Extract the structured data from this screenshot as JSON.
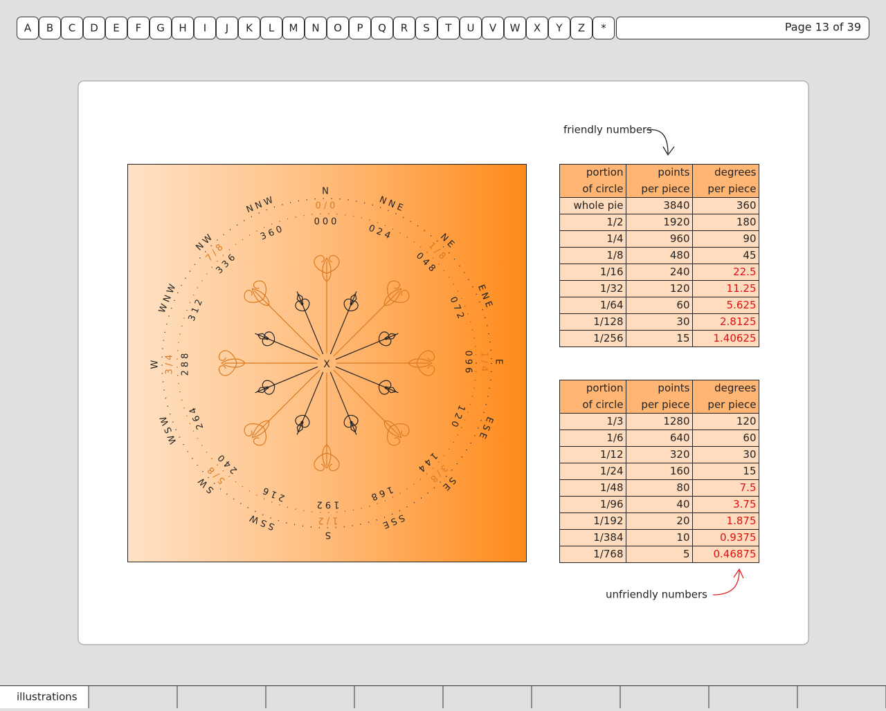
{
  "nav": {
    "letters": [
      "A",
      "B",
      "C",
      "D",
      "E",
      "F",
      "G",
      "H",
      "I",
      "J",
      "K",
      "L",
      "M",
      "N",
      "O",
      "P",
      "Q",
      "R",
      "S",
      "T",
      "U",
      "V",
      "W",
      "X",
      "Y",
      "Z",
      "*"
    ],
    "page_label": "Page 13 of 39"
  },
  "annotations": {
    "friendly": "friendly numbers",
    "unfriendly": "unfriendly numbers"
  },
  "compass": {
    "center": "X",
    "directions": [
      "N",
      "NNE",
      "NE",
      "ENE",
      "E",
      "ESE",
      "SE",
      "SSE",
      "S",
      "SSW",
      "SW",
      "WSW",
      "W",
      "WNW",
      "NW",
      "NNW"
    ],
    "fractions": [
      "0/0",
      "1/8",
      "1/4",
      "3/8",
      "1/2",
      "5/8",
      "3/4",
      "7/8"
    ],
    "numbers": [
      "000",
      "024",
      "048",
      "072",
      "096",
      "120",
      "144",
      "168",
      "192",
      "216",
      "240",
      "264",
      "288",
      "312",
      "336",
      "360"
    ]
  },
  "tables": [
    {
      "header": [
        [
          "portion",
          "of circle"
        ],
        [
          "points",
          "per piece"
        ],
        [
          "degrees",
          "per piece"
        ]
      ],
      "rows": [
        [
          "whole pie",
          "3840",
          "360"
        ],
        [
          "1/2",
          "1920",
          "180"
        ],
        [
          "1/4",
          "960",
          "90"
        ],
        [
          "1/8",
          "480",
          "45"
        ],
        [
          "1/16",
          "240",
          "22.5"
        ],
        [
          "1/32",
          "120",
          "11.25"
        ],
        [
          "1/64",
          "60",
          "5.625"
        ],
        [
          "1/128",
          "30",
          "2.8125"
        ],
        [
          "1/256",
          "15",
          "1.40625"
        ]
      ]
    },
    {
      "header": [
        [
          "portion",
          "of circle"
        ],
        [
          "points",
          "per piece"
        ],
        [
          "degrees",
          "per piece"
        ]
      ],
      "rows": [
        [
          "1/3",
          "1280",
          "120"
        ],
        [
          "1/6",
          "640",
          "60"
        ],
        [
          "1/12",
          "320",
          "30"
        ],
        [
          "1/24",
          "160",
          "15"
        ],
        [
          "1/48",
          "80",
          "7.5"
        ],
        [
          "1/96",
          "40",
          "3.75"
        ],
        [
          "1/192",
          "20",
          "1.875"
        ],
        [
          "1/384",
          "10",
          "0.9375"
        ],
        [
          "1/768",
          "5",
          "0.46875"
        ]
      ]
    }
  ],
  "tabs": [
    "illustrations"
  ]
}
